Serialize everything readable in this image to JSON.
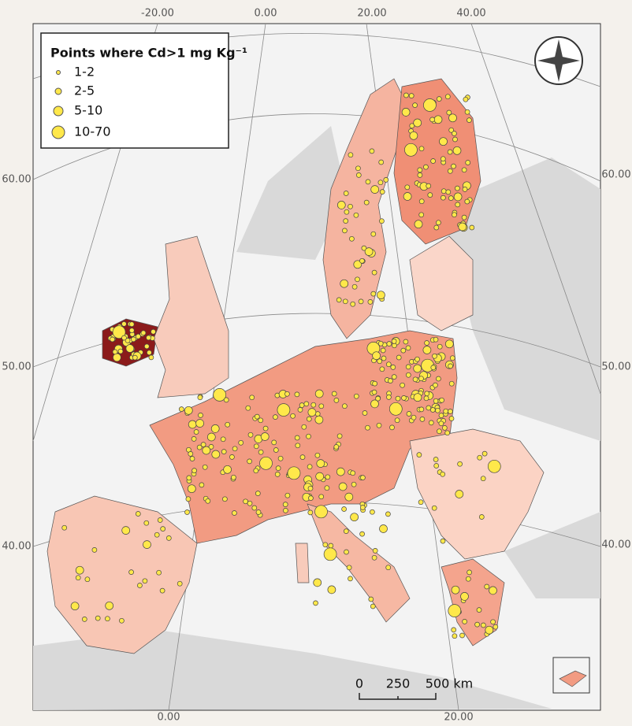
{
  "legend": {
    "title": "Points where Cd>1 mg Kg⁻¹",
    "items": [
      "1-2",
      "2-5",
      "5-10",
      "10-70"
    ]
  },
  "graticule": {
    "top": [
      "-20.00",
      "0.00",
      "20.00",
      "40.00"
    ],
    "left": [
      "60.00",
      "50.00",
      "40.00"
    ],
    "right": [
      "60.00",
      "50.00",
      "40.00"
    ],
    "bottom": [
      "0.00",
      "20.00"
    ]
  },
  "scale_bar": {
    "labels": [
      "0",
      "250",
      "500 km"
    ]
  }
}
